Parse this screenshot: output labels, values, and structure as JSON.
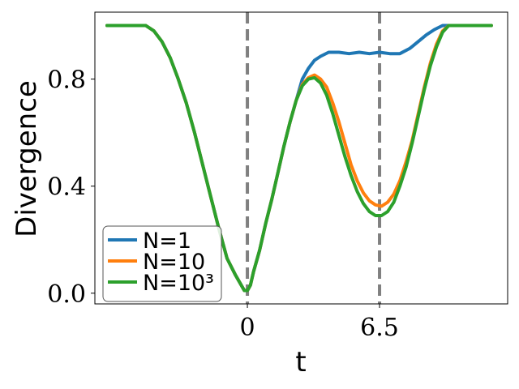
{
  "chart_data": {
    "type": "line",
    "xlabel": "t",
    "ylabel": "Divergence",
    "xlim": [
      -7.5,
      12.8
    ],
    "ylim": [
      -0.04,
      1.05
    ],
    "x_ticks": [
      {
        "value": 0,
        "label": "0"
      },
      {
        "value": 6.5,
        "label": "6.5"
      }
    ],
    "y_ticks": [
      {
        "value": 0.0,
        "label": "0.0"
      },
      {
        "value": 0.4,
        "label": "0.4"
      },
      {
        "value": 0.8,
        "label": "0.8"
      }
    ],
    "vlines": [
      0,
      6.5
    ],
    "vline_color": "#808080",
    "grid": false,
    "legend_position": "lower-left",
    "series": [
      {
        "name": "N=1",
        "color": "#1f77b4",
        "points": [
          [
            -6.9,
            1.0
          ],
          [
            -5.0,
            1.0
          ],
          [
            -4.6,
            0.98
          ],
          [
            -4.2,
            0.94
          ],
          [
            -3.8,
            0.88
          ],
          [
            -3.4,
            0.8
          ],
          [
            -3.0,
            0.71
          ],
          [
            -2.6,
            0.6
          ],
          [
            -2.2,
            0.48
          ],
          [
            -1.8,
            0.36
          ],
          [
            -1.4,
            0.24
          ],
          [
            -1.0,
            0.13
          ],
          [
            -0.6,
            0.07
          ],
          [
            -0.3,
            0.03
          ],
          [
            -0.15,
            0.01
          ],
          [
            0.0,
            0.01
          ],
          [
            0.15,
            0.03
          ],
          [
            0.3,
            0.08
          ],
          [
            0.6,
            0.16
          ],
          [
            0.9,
            0.26
          ],
          [
            1.2,
            0.35
          ],
          [
            1.5,
            0.45
          ],
          [
            1.8,
            0.55
          ],
          [
            2.1,
            0.64
          ],
          [
            2.4,
            0.72
          ],
          [
            2.7,
            0.8
          ],
          [
            3.0,
            0.84
          ],
          [
            3.3,
            0.87
          ],
          [
            3.6,
            0.885
          ],
          [
            4.0,
            0.9
          ],
          [
            4.5,
            0.9
          ],
          [
            5.0,
            0.895
          ],
          [
            5.5,
            0.9
          ],
          [
            6.0,
            0.895
          ],
          [
            6.5,
            0.9
          ],
          [
            7.0,
            0.895
          ],
          [
            7.5,
            0.895
          ],
          [
            8.0,
            0.915
          ],
          [
            8.4,
            0.94
          ],
          [
            8.8,
            0.965
          ],
          [
            9.2,
            0.985
          ],
          [
            9.6,
            1.0
          ],
          [
            12.0,
            1.0
          ]
        ]
      },
      {
        "name": "N=10",
        "color": "#ff7f0e",
        "points": [
          [
            -6.9,
            1.0
          ],
          [
            -5.0,
            1.0
          ],
          [
            -4.6,
            0.98
          ],
          [
            -4.2,
            0.94
          ],
          [
            -3.8,
            0.88
          ],
          [
            -3.4,
            0.8
          ],
          [
            -3.0,
            0.71
          ],
          [
            -2.6,
            0.6
          ],
          [
            -2.2,
            0.48
          ],
          [
            -1.8,
            0.36
          ],
          [
            -1.4,
            0.24
          ],
          [
            -1.0,
            0.13
          ],
          [
            -0.6,
            0.07
          ],
          [
            -0.3,
            0.03
          ],
          [
            -0.15,
            0.01
          ],
          [
            0.0,
            0.01
          ],
          [
            0.15,
            0.03
          ],
          [
            0.3,
            0.08
          ],
          [
            0.6,
            0.16
          ],
          [
            0.9,
            0.26
          ],
          [
            1.2,
            0.35
          ],
          [
            1.5,
            0.45
          ],
          [
            1.8,
            0.55
          ],
          [
            2.1,
            0.64
          ],
          [
            2.4,
            0.72
          ],
          [
            2.7,
            0.78
          ],
          [
            3.0,
            0.805
          ],
          [
            3.3,
            0.815
          ],
          [
            3.6,
            0.8
          ],
          [
            3.9,
            0.77
          ],
          [
            4.2,
            0.71
          ],
          [
            4.5,
            0.64
          ],
          [
            4.8,
            0.56
          ],
          [
            5.1,
            0.48
          ],
          [
            5.4,
            0.42
          ],
          [
            5.7,
            0.375
          ],
          [
            6.0,
            0.345
          ],
          [
            6.3,
            0.33
          ],
          [
            6.6,
            0.325
          ],
          [
            6.9,
            0.34
          ],
          [
            7.2,
            0.37
          ],
          [
            7.5,
            0.42
          ],
          [
            7.8,
            0.49
          ],
          [
            8.1,
            0.57
          ],
          [
            8.4,
            0.67
          ],
          [
            8.7,
            0.77
          ],
          [
            9.0,
            0.86
          ],
          [
            9.3,
            0.93
          ],
          [
            9.6,
            0.98
          ],
          [
            9.9,
            1.0
          ],
          [
            12.0,
            1.0
          ]
        ]
      },
      {
        "name": "N=10³",
        "color": "#2ca02c",
        "points": [
          [
            -6.9,
            1.0
          ],
          [
            -5.0,
            1.0
          ],
          [
            -4.6,
            0.98
          ],
          [
            -4.2,
            0.94
          ],
          [
            -3.8,
            0.88
          ],
          [
            -3.4,
            0.8
          ],
          [
            -3.0,
            0.71
          ],
          [
            -2.6,
            0.6
          ],
          [
            -2.2,
            0.48
          ],
          [
            -1.8,
            0.36
          ],
          [
            -1.4,
            0.24
          ],
          [
            -1.0,
            0.13
          ],
          [
            -0.6,
            0.07
          ],
          [
            -0.3,
            0.03
          ],
          [
            -0.15,
            0.01
          ],
          [
            0.0,
            0.01
          ],
          [
            0.15,
            0.03
          ],
          [
            0.3,
            0.08
          ],
          [
            0.6,
            0.16
          ],
          [
            0.9,
            0.26
          ],
          [
            1.2,
            0.35
          ],
          [
            1.5,
            0.45
          ],
          [
            1.8,
            0.55
          ],
          [
            2.1,
            0.64
          ],
          [
            2.4,
            0.72
          ],
          [
            2.7,
            0.775
          ],
          [
            3.0,
            0.8
          ],
          [
            3.3,
            0.805
          ],
          [
            3.6,
            0.785
          ],
          [
            3.9,
            0.74
          ],
          [
            4.2,
            0.67
          ],
          [
            4.5,
            0.59
          ],
          [
            4.8,
            0.51
          ],
          [
            5.1,
            0.44
          ],
          [
            5.4,
            0.38
          ],
          [
            5.7,
            0.335
          ],
          [
            6.0,
            0.305
          ],
          [
            6.3,
            0.29
          ],
          [
            6.6,
            0.29
          ],
          [
            6.9,
            0.305
          ],
          [
            7.2,
            0.34
          ],
          [
            7.5,
            0.4
          ],
          [
            7.8,
            0.47
          ],
          [
            8.1,
            0.56
          ],
          [
            8.4,
            0.66
          ],
          [
            8.7,
            0.76
          ],
          [
            9.0,
            0.85
          ],
          [
            9.3,
            0.92
          ],
          [
            9.6,
            0.975
          ],
          [
            9.9,
            1.0
          ],
          [
            12.0,
            1.0
          ]
        ]
      }
    ]
  }
}
